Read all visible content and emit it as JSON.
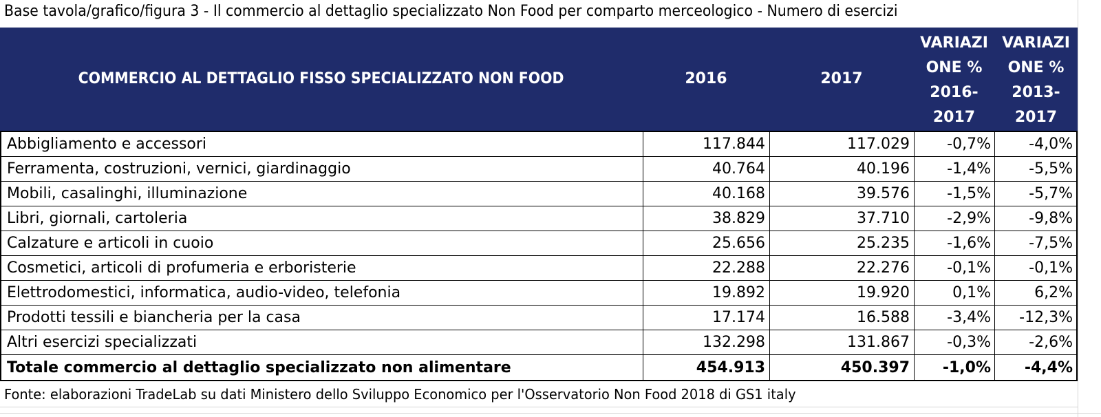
{
  "title": "Base tavola/grafico/figura 3 - Il commercio al dettaglio specializzato Non Food per comparto merceologico - Numero di esercizi",
  "header": {
    "label": "COMMERCIO AL DETTAGLIO FISSO SPECIALIZZATO NON FOOD",
    "y2016": "2016",
    "y2017": "2017",
    "var1": [
      "VARIAZI",
      "ONE %",
      "2016-",
      "2017"
    ],
    "var2": [
      "VARIAZI",
      "ONE %",
      "2013-",
      "2017"
    ]
  },
  "rows": [
    {
      "label": "Abbigliamento e accessori",
      "y2016": "117.844",
      "y2017": "117.029",
      "var1": "-0,7%",
      "var2": "-4,0%"
    },
    {
      "label": "Ferramenta, costruzioni, vernici, giardinaggio",
      "y2016": "40.764",
      "y2017": "40.196",
      "var1": "-1,4%",
      "var2": "-5,5%"
    },
    {
      "label": "Mobili, casalinghi, illuminazione",
      "y2016": "40.168",
      "y2017": "39.576",
      "var1": "-1,5%",
      "var2": "-5,7%"
    },
    {
      "label": "Libri, giornali, cartoleria",
      "y2016": "38.829",
      "y2017": "37.710",
      "var1": "-2,9%",
      "var2": "-9,8%"
    },
    {
      "label": "Calzature e articoli in cuoio",
      "y2016": "25.656",
      "y2017": "25.235",
      "var1": "-1,6%",
      "var2": "-7,5%"
    },
    {
      "label": "Cosmetici, articoli di profumeria e erboristerie",
      "y2016": "22.288",
      "y2017": "22.276",
      "var1": "-0,1%",
      "var2": "-0,1%"
    },
    {
      "label": "Elettrodomestici, informatica, audio-video, telefonia",
      "y2016": "19.892",
      "y2017": "19.920",
      "var1": "0,1%",
      "var2": "6,2%"
    },
    {
      "label": "Prodotti tessili e biancheria per la casa",
      "y2016": "17.174",
      "y2017": "16.588",
      "var1": "-3,4%",
      "var2": "-12,3%"
    },
    {
      "label": "Altri esercizi specializzati",
      "y2016": "132.298",
      "y2017": "131.867",
      "var1": "-0,3%",
      "var2": "-2,6%"
    }
  ],
  "total": {
    "label": "Totale commercio al dettaglio specializzato non alimentare",
    "y2016": "454.913",
    "y2017": "450.397",
    "var1": "-1,0%",
    "var2": "-4,4%"
  },
  "source": "Fonte: elaborazioni TradeLab su dati Ministero dello Sviluppo Economico  per l'Osservatorio Non Food 2018 di GS1 italy",
  "colors": {
    "header_bg": "#1f2c6b",
    "header_text": "#ffffff"
  }
}
